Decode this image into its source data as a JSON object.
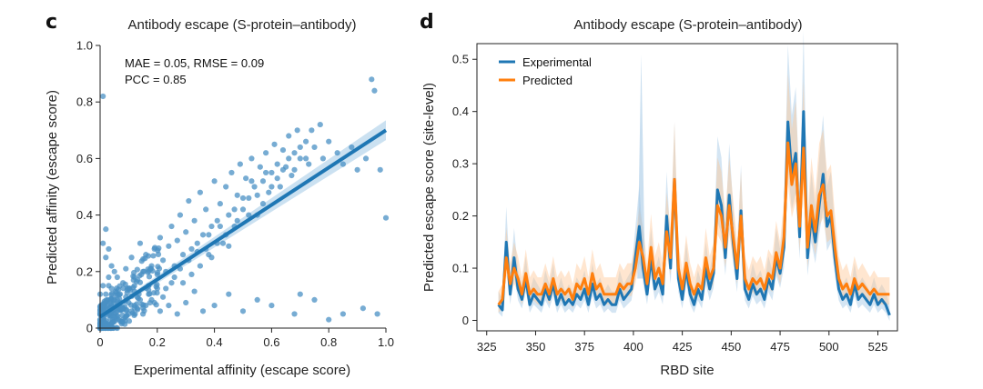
{
  "chart_data": [
    {
      "panel": "c",
      "type": "scatter",
      "title": "Antibody escape (S-protein–antibody)",
      "xlabel": "Experimental affinity (escape score)",
      "ylabel": "Predicted affinity (escape score)",
      "xlim": [
        0,
        1.0
      ],
      "ylim": [
        0,
        1.0
      ],
      "xticks": [
        "0",
        "0.2",
        "0.4",
        "0.6",
        "0.8",
        "1.0"
      ],
      "yticks": [
        "0",
        "0.2",
        "0.4",
        "0.6",
        "0.8",
        "1.0"
      ],
      "annotations": [
        "MAE = 0.05, RMSE = 0.09",
        "PCC = 0.85"
      ],
      "regression": {
        "slope": 0.66,
        "intercept": 0.04,
        "x_range": [
          0,
          1.0
        ]
      },
      "grid": false,
      "colors": {
        "points": "#4a90c4",
        "line": "#1f77b4",
        "band": "#a9cde8"
      },
      "points": [
        [
          0.01,
          0.82
        ],
        [
          0.02,
          0.35
        ],
        [
          0.01,
          0.3
        ],
        [
          0.03,
          0.28
        ],
        [
          0.02,
          0.25
        ],
        [
          0.04,
          0.22
        ],
        [
          0.05,
          0.2
        ],
        [
          0.06,
          0.18
        ],
        [
          0.03,
          0.15
        ],
        [
          0.08,
          0.16
        ],
        [
          0.1,
          0.14
        ],
        [
          0.07,
          0.12
        ],
        [
          0.12,
          0.18
        ],
        [
          0.09,
          0.21
        ],
        [
          0.11,
          0.25
        ],
        [
          0.13,
          0.11
        ],
        [
          0.15,
          0.2
        ],
        [
          0.16,
          0.26
        ],
        [
          0.14,
          0.3
        ],
        [
          0.18,
          0.22
        ],
        [
          0.17,
          0.15
        ],
        [
          0.19,
          0.28
        ],
        [
          0.2,
          0.19
        ],
        [
          0.21,
          0.32
        ],
        [
          0.22,
          0.24
        ],
        [
          0.23,
          0.14
        ],
        [
          0.24,
          0.29
        ],
        [
          0.25,
          0.36
        ],
        [
          0.26,
          0.22
        ],
        [
          0.27,
          0.31
        ],
        [
          0.28,
          0.4
        ],
        [
          0.29,
          0.26
        ],
        [
          0.3,
          0.34
        ],
        [
          0.31,
          0.45
        ],
        [
          0.32,
          0.28
        ],
        [
          0.33,
          0.38
        ],
        [
          0.34,
          0.3
        ],
        [
          0.35,
          0.48
        ],
        [
          0.36,
          0.33
        ],
        [
          0.37,
          0.42
        ],
        [
          0.38,
          0.26
        ],
        [
          0.39,
          0.36
        ],
        [
          0.4,
          0.52
        ],
        [
          0.41,
          0.38
        ],
        [
          0.42,
          0.44
        ],
        [
          0.43,
          0.3
        ],
        [
          0.44,
          0.5
        ],
        [
          0.45,
          0.4
        ],
        [
          0.46,
          0.55
        ],
        [
          0.47,
          0.36
        ],
        [
          0.48,
          0.47
        ],
        [
          0.49,
          0.58
        ],
        [
          0.5,
          0.42
        ],
        [
          0.51,
          0.53
        ],
        [
          0.52,
          0.46
        ],
        [
          0.53,
          0.6
        ],
        [
          0.54,
          0.5
        ],
        [
          0.55,
          0.4
        ],
        [
          0.56,
          0.57
        ],
        [
          0.57,
          0.52
        ],
        [
          0.58,
          0.62
        ],
        [
          0.59,
          0.48
        ],
        [
          0.6,
          0.55
        ],
        [
          0.61,
          0.65
        ],
        [
          0.62,
          0.58
        ],
        [
          0.63,
          0.5
        ],
        [
          0.64,
          0.63
        ],
        [
          0.65,
          0.57
        ],
        [
          0.66,
          0.68
        ],
        [
          0.67,
          0.54
        ],
        [
          0.68,
          0.62
        ],
        [
          0.69,
          0.7
        ],
        [
          0.7,
          0.6
        ],
        [
          0.72,
          0.66
        ],
        [
          0.73,
          0.58
        ],
        [
          0.74,
          0.7
        ],
        [
          0.75,
          0.64
        ],
        [
          0.77,
          0.72
        ],
        [
          0.78,
          0.6
        ],
        [
          0.8,
          0.66
        ],
        [
          0.83,
          0.62
        ],
        [
          0.85,
          0.58
        ],
        [
          0.88,
          0.64
        ],
        [
          0.9,
          0.56
        ],
        [
          0.93,
          0.6
        ],
        [
          0.95,
          0.88
        ],
        [
          0.96,
          0.84
        ],
        [
          0.98,
          0.56
        ],
        [
          1.0,
          0.39
        ],
        [
          0.97,
          0.05
        ],
        [
          0.92,
          0.07
        ],
        [
          0.85,
          0.05
        ],
        [
          0.8,
          0.03
        ],
        [
          0.75,
          0.1
        ],
        [
          0.7,
          0.12
        ],
        [
          0.68,
          0.05
        ],
        [
          0.6,
          0.08
        ],
        [
          0.55,
          0.1
        ],
        [
          0.5,
          0.06
        ],
        [
          0.45,
          0.12
        ],
        [
          0.4,
          0.08
        ],
        [
          0.36,
          0.06
        ],
        [
          0.33,
          0.13
        ],
        [
          0.3,
          0.09
        ],
        [
          0.27,
          0.05
        ],
        [
          0.24,
          0.08
        ],
        [
          0.21,
          0.06
        ],
        [
          0.18,
          0.1
        ],
        [
          0.15,
          0.05
        ],
        [
          0.12,
          0.08
        ],
        [
          0.1,
          0.05
        ],
        [
          0.08,
          0.07
        ],
        [
          0.06,
          0.1
        ],
        [
          0.05,
          0.04
        ],
        [
          0.04,
          0.08
        ],
        [
          0.03,
          0.05
        ],
        [
          0.02,
          0.09
        ],
        [
          0.01,
          0.04
        ],
        [
          0.0,
          0.06
        ],
        [
          0.0,
          0.12
        ],
        [
          0.01,
          0.15
        ],
        [
          0.02,
          0.12
        ],
        [
          0.03,
          0.18
        ],
        [
          0.04,
          0.14
        ],
        [
          0.05,
          0.1
        ],
        [
          0.06,
          0.06
        ],
        [
          0.07,
          0.09
        ],
        [
          0.08,
          0.03
        ],
        [
          0.09,
          0.11
        ],
        [
          0.1,
          0.09
        ],
        [
          0.11,
          0.06
        ],
        [
          0.12,
          0.13
        ],
        [
          0.13,
          0.07
        ],
        [
          0.14,
          0.1
        ],
        [
          0.16,
          0.08
        ],
        [
          0.17,
          0.12
        ],
        [
          0.19,
          0.09
        ],
        [
          0.2,
          0.14
        ],
        [
          0.22,
          0.11
        ],
        [
          0.23,
          0.2
        ],
        [
          0.25,
          0.16
        ],
        [
          0.26,
          0.18
        ],
        [
          0.28,
          0.21
        ],
        [
          0.29,
          0.16
        ],
        [
          0.31,
          0.24
        ],
        [
          0.32,
          0.19
        ],
        [
          0.34,
          0.27
        ],
        [
          0.35,
          0.22
        ],
        [
          0.37,
          0.28
        ],
        [
          0.38,
          0.33
        ],
        [
          0.39,
          0.25
        ],
        [
          0.41,
          0.3
        ],
        [
          0.42,
          0.36
        ],
        [
          0.44,
          0.33
        ],
        [
          0.45,
          0.29
        ],
        [
          0.47,
          0.42
        ],
        [
          0.48,
          0.38
        ],
        [
          0.5,
          0.46
        ],
        [
          0.52,
          0.4
        ],
        [
          0.53,
          0.52
        ],
        [
          0.55,
          0.47
        ],
        [
          0.57,
          0.44
        ],
        [
          0.58,
          0.55
        ],
        [
          0.6,
          0.5
        ],
        [
          0.62,
          0.53
        ],
        [
          0.64,
          0.56
        ],
        [
          0.66,
          0.6
        ],
        [
          0.68,
          0.56
        ],
        [
          0.7,
          0.64
        ],
        [
          0.72,
          0.6
        ]
      ]
    },
    {
      "panel": "d",
      "type": "line",
      "title": "Antibody escape (S-protein–antibody)",
      "xlabel": "RBD site",
      "ylabel": "Predicted escape score (site-level)",
      "xlim": [
        320,
        535
      ],
      "ylim": [
        -0.02,
        0.53
      ],
      "xticks": [
        "325",
        "350",
        "375",
        "400",
        "425",
        "450",
        "475",
        "500",
        "525"
      ],
      "yticks": [
        "0",
        "0.1",
        "0.2",
        "0.3",
        "0.4",
        "0.5"
      ],
      "legend_position": "top-left",
      "grid": false,
      "x": [
        331,
        333,
        335,
        337,
        339,
        341,
        343,
        345,
        347,
        349,
        351,
        353,
        355,
        357,
        359,
        361,
        363,
        365,
        367,
        369,
        371,
        373,
        375,
        377,
        379,
        381,
        383,
        385,
        387,
        389,
        391,
        393,
        395,
        397,
        399,
        401,
        403,
        405,
        407,
        409,
        411,
        413,
        415,
        417,
        419,
        421,
        423,
        425,
        427,
        429,
        431,
        433,
        435,
        437,
        439,
        441,
        443,
        445,
        447,
        449,
        451,
        453,
        455,
        457,
        459,
        461,
        463,
        465,
        467,
        469,
        471,
        473,
        475,
        477,
        479,
        481,
        483,
        485,
        487,
        489,
        491,
        493,
        495,
        497,
        499,
        501,
        503,
        505,
        507,
        509,
        511,
        513,
        515,
        517,
        519,
        521,
        523,
        525,
        527,
        529,
        531
      ],
      "series": [
        {
          "name": "Experimental",
          "color": "#1f77b4",
          "values": [
            0.03,
            0.02,
            0.15,
            0.05,
            0.12,
            0.06,
            0.04,
            0.08,
            0.03,
            0.05,
            0.04,
            0.03,
            0.06,
            0.04,
            0.07,
            0.03,
            0.05,
            0.03,
            0.04,
            0.03,
            0.05,
            0.04,
            0.06,
            0.03,
            0.07,
            0.04,
            0.05,
            0.03,
            0.04,
            0.03,
            0.03,
            0.06,
            0.04,
            0.05,
            0.06,
            0.12,
            0.18,
            0.1,
            0.05,
            0.12,
            0.06,
            0.08,
            0.05,
            0.2,
            0.1,
            0.27,
            0.08,
            0.04,
            0.1,
            0.05,
            0.03,
            0.06,
            0.04,
            0.1,
            0.06,
            0.09,
            0.25,
            0.22,
            0.12,
            0.24,
            0.15,
            0.08,
            0.21,
            0.06,
            0.04,
            0.07,
            0.05,
            0.06,
            0.04,
            0.08,
            0.06,
            0.12,
            0.09,
            0.14,
            0.38,
            0.28,
            0.32,
            0.16,
            0.4,
            0.12,
            0.2,
            0.15,
            0.22,
            0.28,
            0.18,
            0.2,
            0.12,
            0.06,
            0.04,
            0.05,
            0.03,
            0.07,
            0.04,
            0.05,
            0.04,
            0.03,
            0.05,
            0.03,
            0.04,
            0.03,
            0.01
          ]
        },
        {
          "name": "Predicted",
          "color": "#ff7f0e",
          "values": [
            0.03,
            0.04,
            0.12,
            0.07,
            0.1,
            0.08,
            0.05,
            0.09,
            0.05,
            0.06,
            0.05,
            0.05,
            0.07,
            0.05,
            0.08,
            0.05,
            0.06,
            0.05,
            0.06,
            0.04,
            0.07,
            0.06,
            0.08,
            0.05,
            0.09,
            0.06,
            0.07,
            0.05,
            0.05,
            0.05,
            0.05,
            0.07,
            0.06,
            0.07,
            0.07,
            0.1,
            0.15,
            0.12,
            0.07,
            0.14,
            0.08,
            0.1,
            0.07,
            0.17,
            0.12,
            0.27,
            0.1,
            0.06,
            0.11,
            0.07,
            0.05,
            0.07,
            0.06,
            0.12,
            0.08,
            0.1,
            0.22,
            0.2,
            0.14,
            0.22,
            0.16,
            0.1,
            0.2,
            0.08,
            0.06,
            0.08,
            0.07,
            0.08,
            0.06,
            0.09,
            0.08,
            0.13,
            0.1,
            0.16,
            0.34,
            0.26,
            0.3,
            0.18,
            0.33,
            0.14,
            0.22,
            0.17,
            0.24,
            0.26,
            0.2,
            0.21,
            0.14,
            0.08,
            0.06,
            0.07,
            0.05,
            0.08,
            0.06,
            0.07,
            0.06,
            0.05,
            0.06,
            0.05,
            0.05,
            0.05,
            0.05
          ]
        }
      ]
    }
  ]
}
